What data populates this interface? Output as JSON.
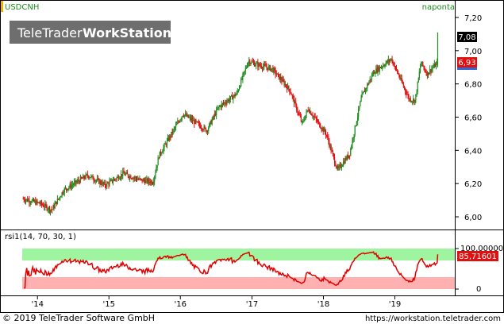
{
  "header": {
    "symbol": "USDCNH",
    "period": "naponta",
    "brand_part1": "TeleTrader",
    "brand_part2": "WorkStation"
  },
  "footer": {
    "copyright": "© 2019 TeleTrader Software GmbH",
    "url": "https://workstation.teletrader.com"
  },
  "colors": {
    "up": "#1e8c1e",
    "down": "#e01010",
    "rsi_line": "#e00000",
    "rsi_overbought_band": "#9ff59f",
    "rsi_oversold_band": "#ffb0b0",
    "last_price_box": "#000000",
    "close_box": "#e01010"
  },
  "chart_data": [
    {
      "type": "candlestick",
      "title": "USDCNH",
      "x_axis_labels": [
        "'14",
        "'15",
        "'16",
        "'17",
        "'18",
        "'19"
      ],
      "y_ticks": [
        "6,00",
        "6,20",
        "6,40",
        "6,60",
        "6,80",
        "7,00",
        "7,20"
      ],
      "ylim": [
        5.93,
        7.23
      ],
      "last_high_label": "7,08",
      "last_close_label": "6,93",
      "approx_close_series": {
        "x": [
          "2013-10",
          "2014-01",
          "2014-03",
          "2014-05",
          "2014-09",
          "2014-12",
          "2015-03",
          "2015-06",
          "2015-08",
          "2015-09",
          "2016-01",
          "2016-05",
          "2016-07",
          "2016-10",
          "2016-12",
          "2017-01",
          "2017-04",
          "2017-07",
          "2017-09",
          "2017-10",
          "2018-01",
          "2018-03",
          "2018-05",
          "2018-07",
          "2018-09",
          "2018-12",
          "2019-03",
          "2019-04",
          "2019-05",
          "2019-06",
          "2019-07",
          "2019-08"
        ],
        "values": [
          6.11,
          6.08,
          6.04,
          6.16,
          6.25,
          6.19,
          6.26,
          6.22,
          6.21,
          6.37,
          6.62,
          6.52,
          6.66,
          6.74,
          6.94,
          6.92,
          6.89,
          6.76,
          6.56,
          6.65,
          6.5,
          6.28,
          6.38,
          6.72,
          6.87,
          6.95,
          6.71,
          6.7,
          6.93,
          6.86,
          6.9,
          6.93
        ]
      }
    },
    {
      "type": "line",
      "title": "rsi1(14, 70, 30, 1)",
      "y_ticks": [
        "0",
        "100,00000"
      ],
      "ylim": [
        0,
        100
      ],
      "overbought": 70,
      "oversold": 30,
      "last_value_label": "85,71601"
    }
  ]
}
